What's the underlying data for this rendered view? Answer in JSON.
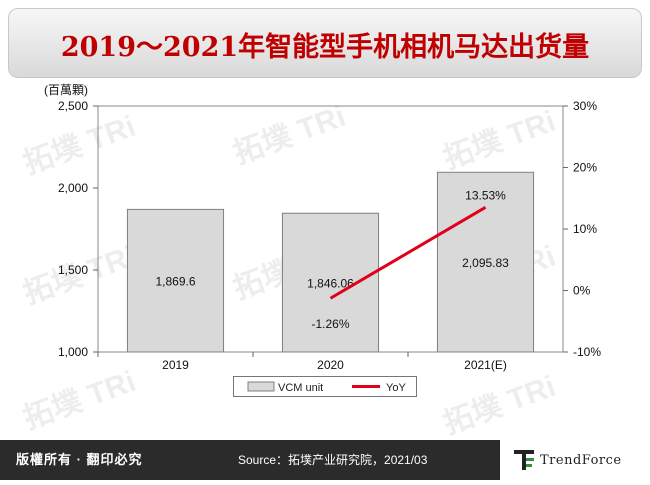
{
  "title": "2019～2021年智能型手机相机马达出货量",
  "footer": {
    "left_text": "版權所有 · 翻印必究",
    "source_text": "Source：拓墣产业研究院，2021/03",
    "logo_text": "TrendForce"
  },
  "colors": {
    "title": "#c00000",
    "bar": "#d9d9d9",
    "bar_border": "#808080",
    "line": "#e0001b",
    "footer_bg": "#2b2b2b"
  },
  "chart_data": {
    "type": "bar",
    "categories": [
      "2019",
      "2020",
      "2021(E)"
    ],
    "y_unit_label": "(百萬顆)",
    "ylim": [
      1000,
      2500
    ],
    "yticks": [
      "1,000",
      "1,500",
      "2,000",
      "2,500"
    ],
    "y2lim": [
      -10,
      30
    ],
    "y2ticks": [
      "-10%",
      "0%",
      "10%",
      "20%",
      "30%"
    ],
    "series": [
      {
        "name": "VCM unit",
        "type": "bar",
        "values": [
          1869.6,
          1846.06,
          2095.83
        ],
        "labels": [
          "1,869.6",
          "1,846.06",
          "2,095.83"
        ]
      },
      {
        "name": "YoY",
        "type": "line",
        "axis": "right",
        "points": [
          {
            "category": "2020",
            "value": -1.26,
            "label": "-1.26%"
          },
          {
            "category": "2021(E)",
            "value": 13.53,
            "label": "13.53%"
          }
        ]
      }
    ],
    "legend": {
      "position": "bottom",
      "items": [
        "VCM unit",
        "YoY"
      ]
    },
    "grid": false
  }
}
